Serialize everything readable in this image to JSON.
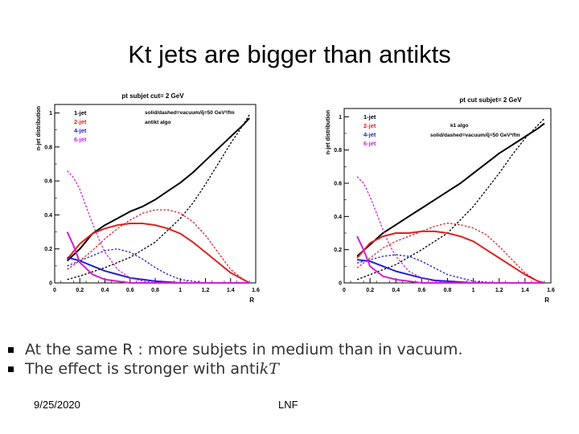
{
  "slide": {
    "title": "Kt jets are bigger than antikts",
    "bullets": [
      {
        "text": "At the same R : more subjets in medium than in vacuum."
      },
      {
        "text": "The effect is stronger with anti",
        "suffix": "kT"
      }
    ],
    "footer_date": "9/25/2020",
    "footer_org": "LNF"
  },
  "colors": {
    "1-jet": "#000000",
    "2-jet": "#e02020",
    "4-jet": "#2020d0",
    "6-jet": "#d020d0"
  },
  "chart_data": [
    {
      "type": "line",
      "title": "pt subjet cut= 2 GeV",
      "xlabel": "R",
      "ylabel": "n-jet distribution",
      "annotations": [
        "solid/dashed=vacuum/q̂=50 GeV²/fm",
        "antikt algo"
      ],
      "legend": [
        "1-jet",
        "2-jet",
        "4-jet",
        "6-jet"
      ],
      "legend_placement": "top-left",
      "xlim": [
        0,
        1.6
      ],
      "ylim": [
        0,
        1.05
      ],
      "xticks": [
        "0",
        "0.2",
        "0.4",
        "0.6",
        "0.8",
        "1",
        "1.2",
        "1.4",
        "1.6"
      ],
      "yticks": [
        "0",
        "0.2",
        "0.4",
        "0.6",
        "0.8",
        "1"
      ],
      "series": [
        {
          "name": "1-jet",
          "style": "solid",
          "x": [
            0.1,
            0.2,
            0.3,
            0.4,
            0.5,
            0.6,
            0.7,
            0.8,
            0.9,
            1.0,
            1.1,
            1.2,
            1.3,
            1.4,
            1.5,
            1.55
          ],
          "y": [
            0.13,
            0.2,
            0.29,
            0.34,
            0.38,
            0.42,
            0.45,
            0.49,
            0.54,
            0.59,
            0.65,
            0.72,
            0.79,
            0.86,
            0.93,
            0.97
          ]
        },
        {
          "name": "1-jet",
          "style": "dashed",
          "x": [
            0.1,
            0.2,
            0.4,
            0.6,
            0.8,
            0.9,
            1.0,
            1.1,
            1.2,
            1.3,
            1.4,
            1.5,
            1.55
          ],
          "y": [
            0.02,
            0.04,
            0.09,
            0.15,
            0.24,
            0.31,
            0.38,
            0.47,
            0.58,
            0.7,
            0.82,
            0.93,
            0.99
          ]
        },
        {
          "name": "2-jet",
          "style": "solid",
          "x": [
            0.1,
            0.2,
            0.3,
            0.4,
            0.5,
            0.6,
            0.7,
            0.8,
            0.9,
            1.0,
            1.1,
            1.2,
            1.3,
            1.4,
            1.5,
            1.55
          ],
          "y": [
            0.14,
            0.23,
            0.29,
            0.32,
            0.34,
            0.35,
            0.35,
            0.34,
            0.32,
            0.29,
            0.24,
            0.18,
            0.12,
            0.06,
            0.02,
            0.0
          ]
        },
        {
          "name": "2-jet",
          "style": "dashed",
          "x": [
            0.1,
            0.2,
            0.3,
            0.4,
            0.5,
            0.6,
            0.7,
            0.8,
            0.9,
            1.0,
            1.1,
            1.2,
            1.3,
            1.4,
            1.5,
            1.55
          ],
          "y": [
            0.08,
            0.13,
            0.19,
            0.26,
            0.32,
            0.37,
            0.41,
            0.43,
            0.43,
            0.41,
            0.36,
            0.28,
            0.18,
            0.08,
            0.02,
            0.0
          ]
        },
        {
          "name": "4-jet",
          "style": "solid",
          "x": [
            0.1,
            0.2,
            0.3,
            0.4,
            0.5,
            0.6,
            0.7,
            0.8,
            0.9,
            1.0,
            1.2,
            1.4,
            1.55
          ],
          "y": [
            0.15,
            0.13,
            0.1,
            0.07,
            0.05,
            0.03,
            0.02,
            0.01,
            0.005,
            0.0,
            0.0,
            0.0,
            0.0
          ]
        },
        {
          "name": "4-jet",
          "style": "dashed",
          "x": [
            0.1,
            0.2,
            0.3,
            0.4,
            0.5,
            0.6,
            0.7,
            0.8,
            0.9,
            1.0,
            1.2,
            1.4,
            1.55
          ],
          "y": [
            0.1,
            0.13,
            0.16,
            0.19,
            0.2,
            0.18,
            0.14,
            0.09,
            0.05,
            0.02,
            0.0,
            0.0,
            0.0
          ]
        },
        {
          "name": "6-jet",
          "style": "solid",
          "x": [
            0.1,
            0.15,
            0.2,
            0.3,
            0.4,
            0.5,
            0.6,
            0.8,
            1.0,
            1.2,
            1.4,
            1.55
          ],
          "y": [
            0.3,
            0.22,
            0.12,
            0.05,
            0.02,
            0.01,
            0.0,
            0.0,
            0.0,
            0.0,
            0.0,
            0.0
          ]
        },
        {
          "name": "6-jet",
          "style": "dashed",
          "x": [
            0.1,
            0.15,
            0.2,
            0.25,
            0.3,
            0.35,
            0.4,
            0.5,
            0.6,
            0.7,
            0.8,
            1.0,
            1.2,
            1.4,
            1.55
          ],
          "y": [
            0.66,
            0.62,
            0.55,
            0.45,
            0.35,
            0.26,
            0.18,
            0.08,
            0.03,
            0.01,
            0.0,
            0.0,
            0.0,
            0.0,
            0.0
          ]
        }
      ]
    },
    {
      "type": "line",
      "title": "pt cut subjet= 2 GeV",
      "xlabel": "R",
      "ylabel": "n-jet distribution",
      "annotations": [
        "k1 algo",
        "solid/dashed=vacuum/q̂=50 GeV²/fm"
      ],
      "legend": [
        "1-jet",
        "2-jet",
        "4-jet",
        "6-jet"
      ],
      "legend_placement": "top-left",
      "xlim": [
        0,
        1.6
      ],
      "ylim": [
        0,
        1.05
      ],
      "xticks": [
        "0",
        "0.2",
        "0.4",
        "0.6",
        "0.8",
        "1",
        "1.2",
        "1.4",
        "1.6"
      ],
      "yticks": [
        "0",
        "0.2",
        "0.4",
        "0.6",
        "0.8",
        "1"
      ],
      "series": [
        {
          "name": "1-jet",
          "style": "solid",
          "x": [
            0.1,
            0.2,
            0.3,
            0.4,
            0.5,
            0.6,
            0.7,
            0.8,
            0.9,
            1.0,
            1.1,
            1.2,
            1.3,
            1.4,
            1.5,
            1.55
          ],
          "y": [
            0.16,
            0.23,
            0.3,
            0.35,
            0.4,
            0.45,
            0.5,
            0.55,
            0.6,
            0.66,
            0.72,
            0.78,
            0.83,
            0.88,
            0.93,
            0.96
          ]
        },
        {
          "name": "1-jet",
          "style": "dashed",
          "x": [
            0.1,
            0.2,
            0.4,
            0.6,
            0.8,
            0.9,
            1.0,
            1.1,
            1.2,
            1.3,
            1.4,
            1.5,
            1.55
          ],
          "y": [
            0.02,
            0.05,
            0.11,
            0.2,
            0.3,
            0.38,
            0.46,
            0.56,
            0.66,
            0.77,
            0.87,
            0.95,
            0.99
          ]
        },
        {
          "name": "2-jet",
          "style": "solid",
          "x": [
            0.1,
            0.2,
            0.3,
            0.4,
            0.5,
            0.6,
            0.7,
            0.8,
            0.9,
            1.0,
            1.1,
            1.2,
            1.3,
            1.4,
            1.5,
            1.55
          ],
          "y": [
            0.15,
            0.24,
            0.28,
            0.3,
            0.3,
            0.31,
            0.31,
            0.3,
            0.28,
            0.25,
            0.2,
            0.15,
            0.1,
            0.05,
            0.01,
            0.0
          ]
        },
        {
          "name": "2-jet",
          "style": "dashed",
          "x": [
            0.1,
            0.2,
            0.3,
            0.4,
            0.5,
            0.6,
            0.7,
            0.8,
            0.9,
            1.0,
            1.1,
            1.2,
            1.3,
            1.4,
            1.5,
            1.55
          ],
          "y": [
            0.09,
            0.15,
            0.21,
            0.25,
            0.28,
            0.31,
            0.34,
            0.36,
            0.35,
            0.33,
            0.29,
            0.22,
            0.14,
            0.06,
            0.01,
            0.0
          ]
        },
        {
          "name": "4-jet",
          "style": "solid",
          "x": [
            0.1,
            0.2,
            0.3,
            0.4,
            0.5,
            0.6,
            0.7,
            0.8,
            0.9,
            1.0,
            1.2,
            1.4,
            1.55
          ],
          "y": [
            0.14,
            0.13,
            0.1,
            0.07,
            0.05,
            0.03,
            0.015,
            0.01,
            0.005,
            0.0,
            0.0,
            0.0,
            0.0
          ]
        },
        {
          "name": "4-jet",
          "style": "dashed",
          "x": [
            0.1,
            0.2,
            0.3,
            0.4,
            0.5,
            0.6,
            0.7,
            0.8,
            0.9,
            1.0,
            1.2,
            1.4,
            1.55
          ],
          "y": [
            0.12,
            0.14,
            0.16,
            0.17,
            0.16,
            0.13,
            0.09,
            0.05,
            0.03,
            0.01,
            0.0,
            0.0,
            0.0
          ]
        },
        {
          "name": "6-jet",
          "style": "solid",
          "x": [
            0.1,
            0.15,
            0.2,
            0.3,
            0.4,
            0.5,
            0.6,
            0.8,
            1.0,
            1.2,
            1.4,
            1.55
          ],
          "y": [
            0.28,
            0.2,
            0.1,
            0.04,
            0.02,
            0.01,
            0.0,
            0.0,
            0.0,
            0.0,
            0.0,
            0.0
          ]
        },
        {
          "name": "6-jet",
          "style": "dashed",
          "x": [
            0.1,
            0.15,
            0.2,
            0.25,
            0.3,
            0.35,
            0.4,
            0.5,
            0.6,
            0.7,
            0.8,
            1.0,
            1.2,
            1.4,
            1.55
          ],
          "y": [
            0.64,
            0.6,
            0.52,
            0.42,
            0.32,
            0.23,
            0.16,
            0.07,
            0.03,
            0.01,
            0.0,
            0.0,
            0.0,
            0.0,
            0.0
          ]
        }
      ]
    }
  ]
}
